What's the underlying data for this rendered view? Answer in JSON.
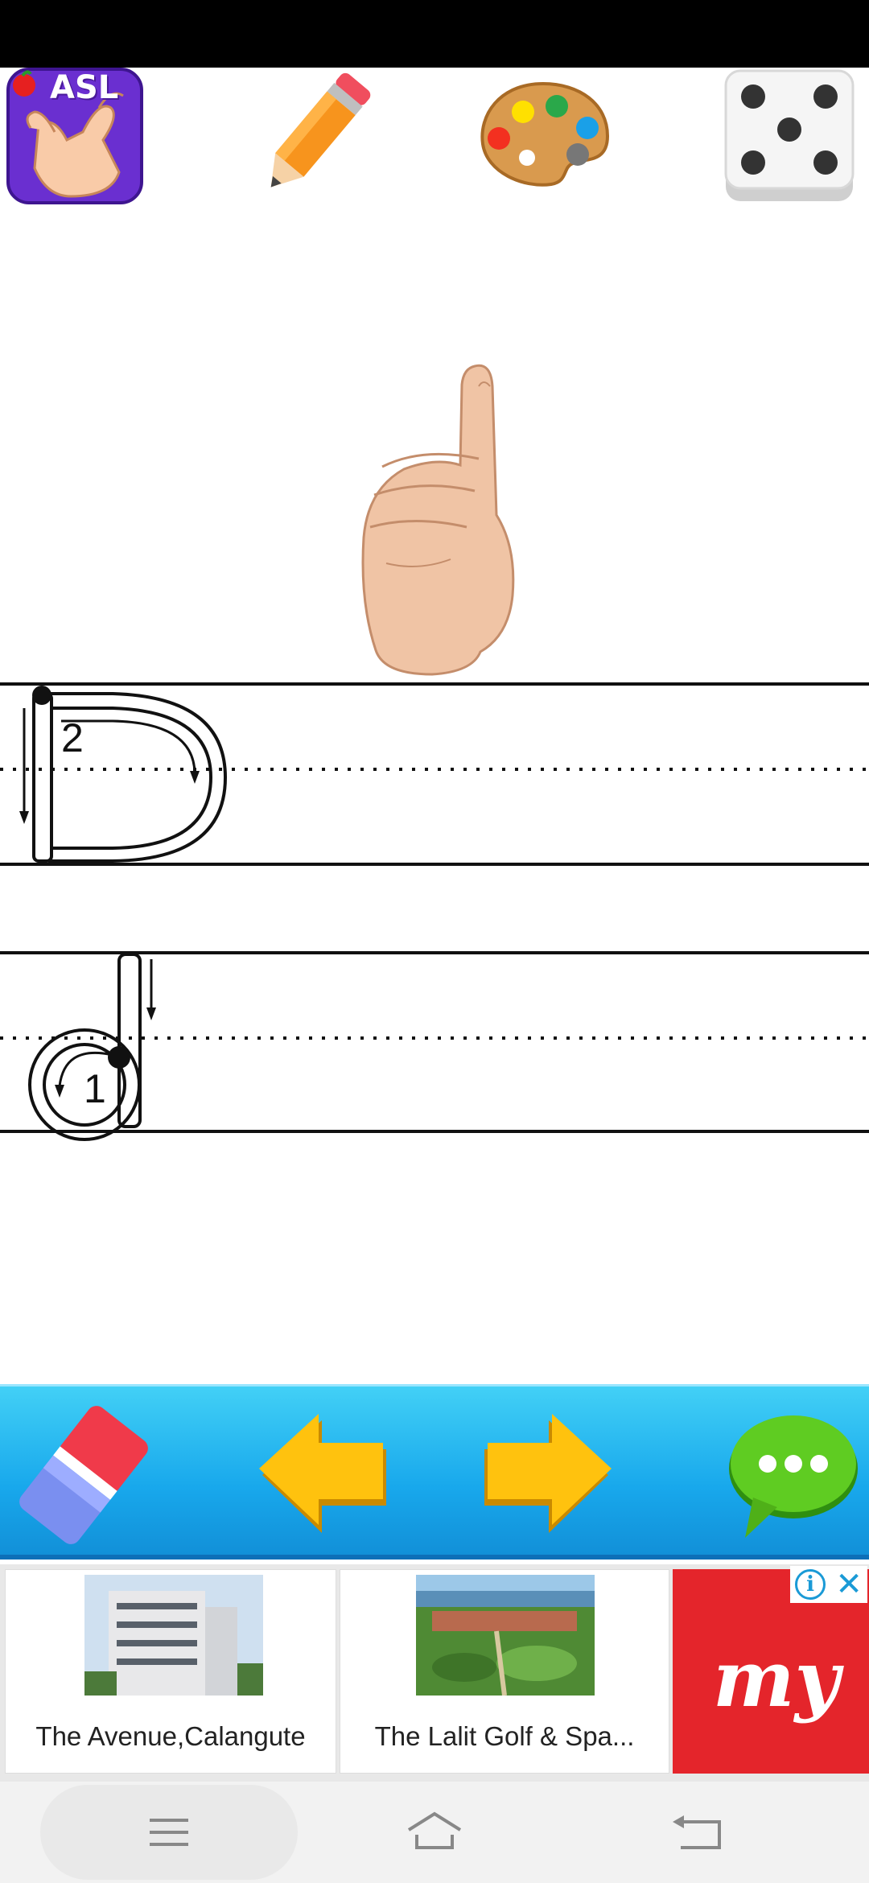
{
  "top_toolbar": {
    "asl_label": "ASL",
    "buttons": [
      {
        "name": "asl-app-button",
        "icon": "asl-hand-icon"
      },
      {
        "name": "pencil-button",
        "icon": "pencil-icon"
      },
      {
        "name": "palette-button",
        "icon": "palette-icon"
      },
      {
        "name": "dice-button",
        "icon": "dice-icon"
      }
    ]
  },
  "practice": {
    "uppercase_stroke_number": "2",
    "lowercase_stroke_number": "1"
  },
  "bottom_toolbar": {
    "buttons": [
      {
        "name": "eraser-button",
        "icon": "eraser-icon"
      },
      {
        "name": "previous-button",
        "icon": "arrow-left-icon"
      },
      {
        "name": "next-button",
        "icon": "arrow-right-icon"
      },
      {
        "name": "chat-button",
        "icon": "chat-bubble-icon"
      }
    ]
  },
  "ad": {
    "cards": [
      {
        "title": "The Avenue,Calangute"
      },
      {
        "title": "The Lalit Golf & Spa..."
      }
    ],
    "brand_logo": "my",
    "info_icon": "i",
    "close_icon": "✕"
  },
  "colors": {
    "toolbar_blue": "#18a8ec",
    "ad_red": "#e4252b",
    "arrow_yellow": "#ffc20e"
  }
}
